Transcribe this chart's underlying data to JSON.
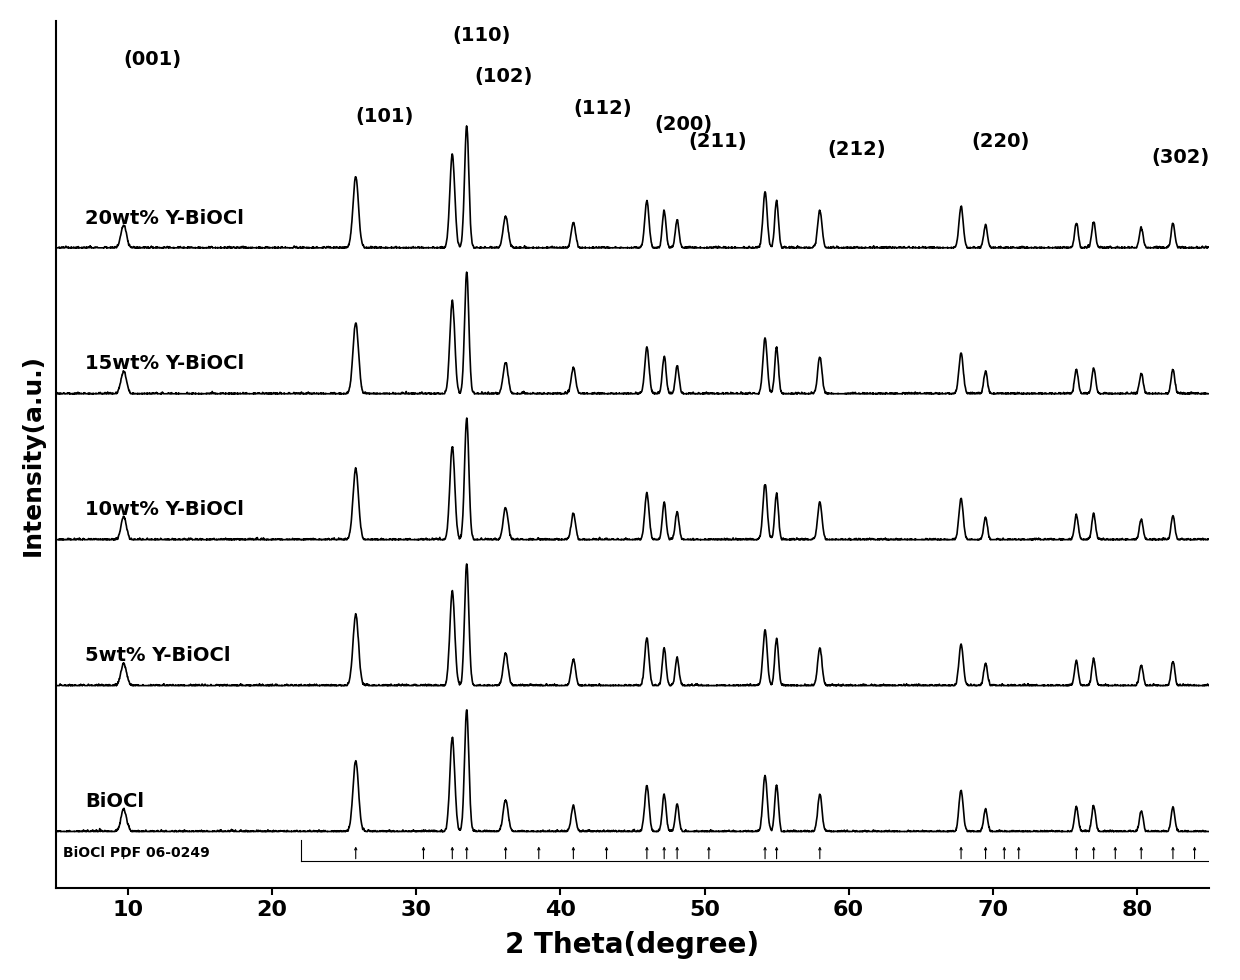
{
  "xlabel": "2 Theta(degree)",
  "ylabel": "Intensity(a.u.)",
  "xlim": [
    5,
    85
  ],
  "xticks": [
    10,
    20,
    30,
    40,
    50,
    60,
    70,
    80
  ],
  "series_labels": [
    "BiOCl",
    "5wt% Y-BiOCl",
    "10wt% Y-BiOCl",
    "15wt% Y-BiOCl",
    "20wt% Y-BiOCl"
  ],
  "offsets": [
    0.0,
    0.18,
    0.36,
    0.54,
    0.72
  ],
  "peak_positions": [
    9.7,
    25.8,
    32.5,
    33.5,
    36.2,
    40.9,
    46.0,
    47.2,
    48.1,
    54.2,
    55.0,
    58.0,
    67.8,
    69.5,
    75.8,
    77.0,
    80.3,
    82.5
  ],
  "peak_heights": [
    0.12,
    0.38,
    0.5,
    0.65,
    0.17,
    0.14,
    0.25,
    0.2,
    0.15,
    0.3,
    0.25,
    0.2,
    0.22,
    0.12,
    0.13,
    0.14,
    0.11,
    0.13
  ],
  "peak_widths": [
    0.45,
    0.45,
    0.4,
    0.35,
    0.4,
    0.35,
    0.35,
    0.3,
    0.3,
    0.35,
    0.3,
    0.35,
    0.35,
    0.3,
    0.3,
    0.3,
    0.3,
    0.3
  ],
  "miller_labels": [
    "(001)",
    "(101)",
    "(110)",
    "(102)",
    "(112)",
    "(200)",
    "(211)",
    "(212)",
    "(220)",
    "(302)"
  ],
  "miller_x": [
    9.7,
    25.8,
    32.5,
    34.0,
    40.9,
    46.5,
    48.9,
    58.5,
    68.5,
    81.0
  ],
  "miller_y": [
    0.94,
    0.87,
    0.97,
    0.92,
    0.88,
    0.86,
    0.84,
    0.83,
    0.84,
    0.82
  ],
  "pdf_ticks": [
    9.7,
    25.8,
    30.5,
    32.5,
    33.5,
    36.2,
    38.5,
    40.9,
    43.2,
    46.0,
    47.2,
    48.1,
    50.3,
    54.2,
    55.0,
    58.0,
    67.8,
    69.5,
    70.8,
    71.8,
    75.8,
    77.0,
    78.5,
    80.3,
    82.5,
    84.0
  ],
  "figure_bgcolor": "#ffffff",
  "line_color": "#000000",
  "fontsize_xlabel": 20,
  "fontsize_ylabel": 18,
  "fontsize_tick": 16,
  "fontsize_miller": 14,
  "fontsize_series": 14,
  "fontsize_pdf": 10
}
